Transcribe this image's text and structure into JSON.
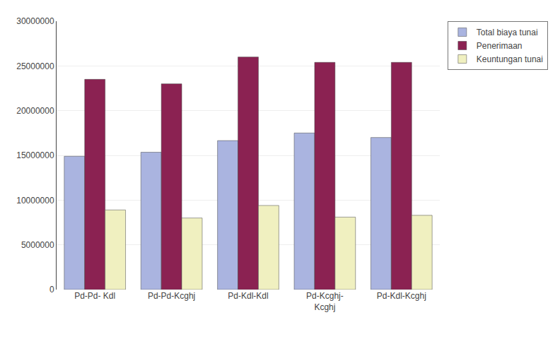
{
  "chart_data": {
    "type": "bar",
    "categories": [
      "Pd-Pd- Kdl",
      "Pd-Pd-Kcghj",
      "Pd-Kdl-Kdl",
      "Pd-Kcghj-\nKcghj",
      "Pd-Kdl-Kcghj"
    ],
    "series": [
      {
        "name": "Total biaya tunai",
        "color": "#aab4e0",
        "values": [
          14900000,
          15350000,
          16650000,
          17500000,
          17000000
        ]
      },
      {
        "name": "Penerimaan",
        "color": "#8b2252",
        "values": [
          23500000,
          23000000,
          26000000,
          25400000,
          25400000
        ]
      },
      {
        "name": "Keuntungan tunai",
        "color": "#f0f0c0",
        "values": [
          8900000,
          8000000,
          9400000,
          8100000,
          8300000
        ]
      }
    ],
    "ylim": [
      0,
      30000000
    ],
    "yticks": [
      0,
      5000000,
      10000000,
      15000000,
      20000000,
      25000000,
      30000000
    ],
    "grid": true,
    "legend": "upper right"
  }
}
